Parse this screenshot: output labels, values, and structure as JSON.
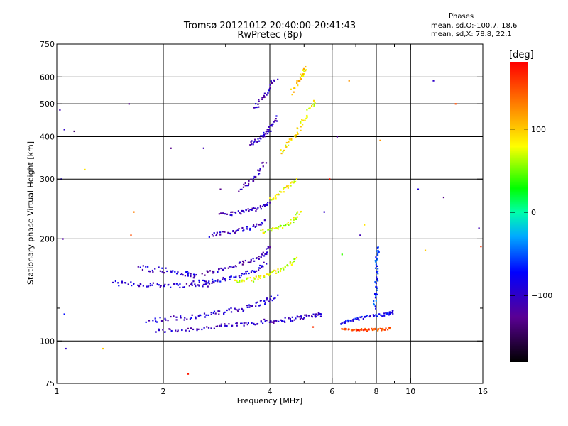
{
  "chart_data": {
    "type": "scatter",
    "title": "Tromsø 20121012 20:40:00-20:41:43",
    "subtitle": "RwPretec (8p)",
    "xlabel": "Frequency [MHz]",
    "ylabel": "Stationary phase Virtual Height [km]",
    "x_scale": "log",
    "y_scale": "log",
    "xlim": [
      1,
      16
    ],
    "ylim": [
      75,
      750
    ],
    "x_ticks": [
      1,
      2,
      4,
      6,
      8,
      10,
      16
    ],
    "x_tick_labels": [
      "1",
      "2",
      "4",
      "6",
      "8",
      "10",
      "16"
    ],
    "x_minor": [
      3,
      5,
      7,
      9
    ],
    "y_ticks": [
      75,
      100,
      200,
      300,
      400,
      500,
      600,
      750
    ],
    "y_tick_labels": [
      "75",
      "100",
      "200",
      "300",
      "400",
      "500",
      "600",
      "750"
    ],
    "y_minor": [
      125
    ],
    "grid": true,
    "colorbar": {
      "label": "[deg]",
      "range": [
        -180,
        180
      ],
      "ticks": [
        100,
        0,
        -100
      ],
      "tick_labels": [
        "100",
        "0",
        "−100"
      ]
    },
    "stats": {
      "title": "Phases",
      "o_line": "mean, sd,O:-100.7, 18.6",
      "x_line": "mean, sd,X:  78.8, 22.1"
    },
    "traces": [
      {
        "x": [
          1.9,
          2.3,
          2.8,
          3.3,
          3.8,
          4.3,
          4.8,
          5.3,
          5.6
        ],
        "y": [
          107,
          108,
          110,
          112,
          114,
          115,
          117,
          119,
          120
        ],
        "phase": -105,
        "spread": 0.03
      },
      {
        "x": [
          1.8,
          2.2,
          2.6,
          3.0,
          3.4,
          3.8,
          4.2
        ],
        "y": [
          115,
          117,
          119,
          122,
          125,
          130,
          135
        ],
        "phase": -95,
        "spread": 0.035
      },
      {
        "x": [
          1.45,
          1.7,
          2.0,
          2.4,
          2.8
        ],
        "y": [
          148,
          147,
          146,
          146,
          147
        ],
        "phase": -100,
        "spread": 0.03
      },
      {
        "x": [
          1.7,
          2.0,
          2.3,
          2.5
        ],
        "y": [
          165,
          162,
          158,
          155
        ],
        "phase": -95,
        "spread": 0.04
      },
      {
        "x": [
          2.4,
          2.8,
          3.2,
          3.6,
          3.9
        ],
        "y": [
          148,
          150,
          155,
          160,
          170
        ],
        "phase": -90,
        "spread": 0.03
      },
      {
        "x": [
          2.6,
          3.0,
          3.4,
          3.8,
          4.0
        ],
        "y": [
          158,
          163,
          170,
          178,
          190
        ],
        "phase": -110,
        "spread": 0.03
      },
      {
        "x": [
          2.7,
          3.1,
          3.5,
          3.9
        ],
        "y": [
          205,
          210,
          215,
          225
        ],
        "phase": -100,
        "spread": 0.025
      },
      {
        "x": [
          2.9,
          3.3,
          3.7,
          4.0
        ],
        "y": [
          235,
          240,
          245,
          255
        ],
        "phase": -105,
        "spread": 0.025
      },
      {
        "x": [
          3.3,
          3.6,
          3.9
        ],
        "y": [
          280,
          300,
          340
        ],
        "phase": -110,
        "spread": 0.03
      },
      {
        "x": [
          3.5,
          3.8,
          4.0,
          4.2
        ],
        "y": [
          380,
          400,
          420,
          460
        ],
        "phase": -100,
        "spread": 0.03
      },
      {
        "x": [
          3.6,
          3.9,
          4.2
        ],
        "y": [
          480,
          540,
          600
        ],
        "phase": -105,
        "spread": 0.035
      },
      {
        "x": [
          3.2,
          3.6,
          4.0,
          4.4,
          4.8
        ],
        "y": [
          150,
          152,
          158,
          165,
          175
        ],
        "phase": 75,
        "spread": 0.03
      },
      {
        "x": [
          3.8,
          4.2,
          4.6,
          4.9
        ],
        "y": [
          210,
          215,
          225,
          240
        ],
        "phase": 70,
        "spread": 0.03
      },
      {
        "x": [
          4.0,
          4.4,
          4.8
        ],
        "y": [
          260,
          280,
          300
        ],
        "phase": 80,
        "spread": 0.03
      },
      {
        "x": [
          4.3,
          4.7,
          5.0,
          5.4
        ],
        "y": [
          360,
          400,
          450,
          520
        ],
        "phase": 85,
        "spread": 0.035
      },
      {
        "x": [
          4.6,
          4.9,
          5.1
        ],
        "y": [
          540,
          600,
          640
        ],
        "phase": 95,
        "spread": 0.03
      },
      {
        "x": [
          6.4,
          7.0,
          7.6,
          8.2,
          8.8
        ],
        "y": [
          108,
          108,
          108,
          108,
          109
        ],
        "phase": 150,
        "spread": 0.015
      },
      {
        "x": [
          6.3,
          6.8,
          7.5,
          8.5,
          9.0
        ],
        "y": [
          112,
          115,
          118,
          120,
          122
        ],
        "phase": -80,
        "spread": 0.02
      },
      {
        "x": [
          7.9,
          8.0,
          8.0,
          8.1
        ],
        "y": [
          125,
          145,
          170,
          190
        ],
        "phase": -60,
        "spread": 0.02
      }
    ],
    "scatter_points": [
      {
        "x": 1.02,
        "y": 480,
        "phase": -110
      },
      {
        "x": 1.05,
        "y": 420,
        "phase": -100
      },
      {
        "x": 1.03,
        "y": 300,
        "phase": -90
      },
      {
        "x": 1.04,
        "y": 200,
        "phase": -120
      },
      {
        "x": 1.05,
        "y": 120,
        "phase": -70
      },
      {
        "x": 1.06,
        "y": 95,
        "phase": -100
      },
      {
        "x": 1.12,
        "y": 415,
        "phase": -140
      },
      {
        "x": 1.2,
        "y": 320,
        "phase": 90
      },
      {
        "x": 1.35,
        "y": 95,
        "phase": 100
      },
      {
        "x": 1.6,
        "y": 500,
        "phase": -130
      },
      {
        "x": 1.65,
        "y": 240,
        "phase": 130
      },
      {
        "x": 1.62,
        "y": 205,
        "phase": 150
      },
      {
        "x": 2.35,
        "y": 80,
        "phase": 170
      },
      {
        "x": 2.1,
        "y": 370,
        "phase": -130
      },
      {
        "x": 2.6,
        "y": 370,
        "phase": -110
      },
      {
        "x": 2.9,
        "y": 280,
        "phase": -130
      },
      {
        "x": 5.9,
        "y": 300,
        "phase": 170
      },
      {
        "x": 6.2,
        "y": 400,
        "phase": -120
      },
      {
        "x": 6.7,
        "y": 585,
        "phase": 120
      },
      {
        "x": 6.4,
        "y": 180,
        "phase": 40
      },
      {
        "x": 7.2,
        "y": 205,
        "phase": -110
      },
      {
        "x": 7.4,
        "y": 220,
        "phase": 90
      },
      {
        "x": 8.2,
        "y": 390,
        "phase": 120
      },
      {
        "x": 10.5,
        "y": 280,
        "phase": -90
      },
      {
        "x": 11.6,
        "y": 585,
        "phase": -100
      },
      {
        "x": 12.4,
        "y": 265,
        "phase": -130
      },
      {
        "x": 13.4,
        "y": 500,
        "phase": 150
      },
      {
        "x": 15.6,
        "y": 215,
        "phase": -110
      },
      {
        "x": 15.8,
        "y": 190,
        "phase": 160
      },
      {
        "x": 11.0,
        "y": 185,
        "phase": 100
      },
      {
        "x": 5.7,
        "y": 240,
        "phase": -100
      },
      {
        "x": 5.3,
        "y": 110,
        "phase": 160
      }
    ]
  }
}
